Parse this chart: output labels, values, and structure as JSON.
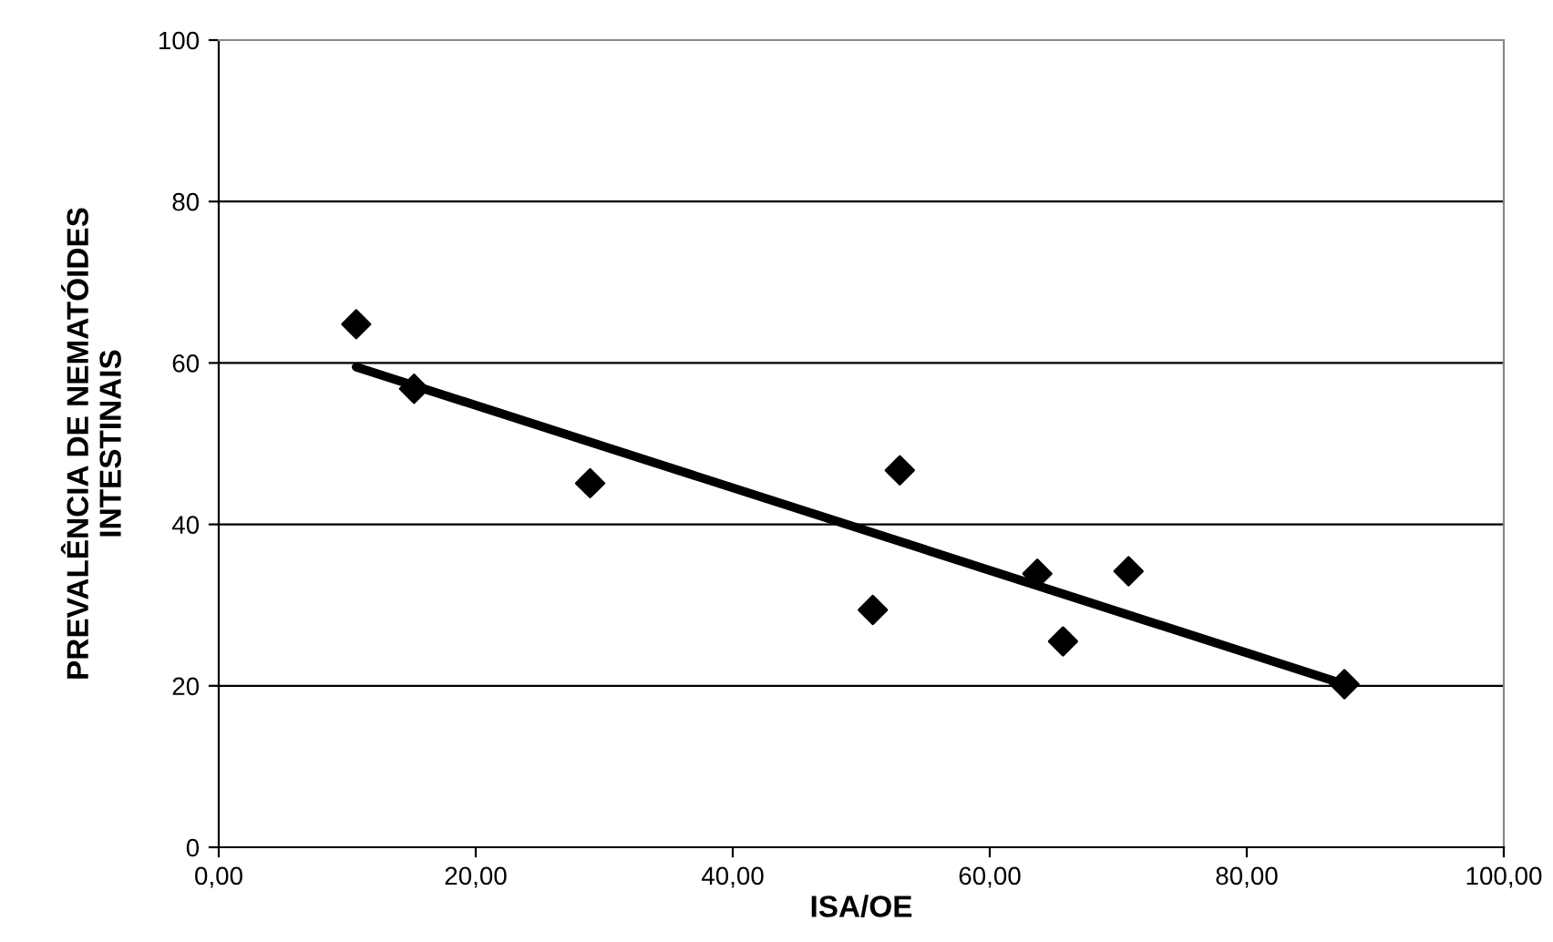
{
  "chart_data": {
    "type": "scatter",
    "xlabel": "ISA/OE",
    "ylabel": "PREVALÊNCIA DE NEMATÓIDES\nINTESTINAIS",
    "series": [
      {
        "color": "#000000",
        "marker": "diamond",
        "x": [
          10.7,
          15.2,
          28.9,
          50.9,
          53.0,
          63.7,
          65.7,
          70.8,
          87.6
        ],
        "values": [
          64.8,
          56.8,
          45.1,
          29.4,
          46.7,
          33.9,
          25.5,
          34.2,
          20.2
        ]
      },
      {
        "type": "line",
        "color": "#000000",
        "marker": "none",
        "line_style": "solid",
        "x": [
          10.7,
          87.6
        ],
        "values": [
          59.5,
          20.2
        ]
      }
    ],
    "xlim": [
      0,
      100
    ],
    "ylim": [
      0,
      100
    ],
    "xticks": [
      {
        "value": 0,
        "label": "0,00"
      },
      {
        "value": 20,
        "label": "20,00"
      },
      {
        "value": 40,
        "label": "40,00"
      },
      {
        "value": 60,
        "label": "60,00"
      },
      {
        "value": 80,
        "label": "80,00"
      },
      {
        "value": 100,
        "label": "100,00"
      }
    ],
    "yticks": [
      0,
      20,
      40,
      60,
      80,
      100
    ],
    "grid": "y",
    "legend": false
  }
}
